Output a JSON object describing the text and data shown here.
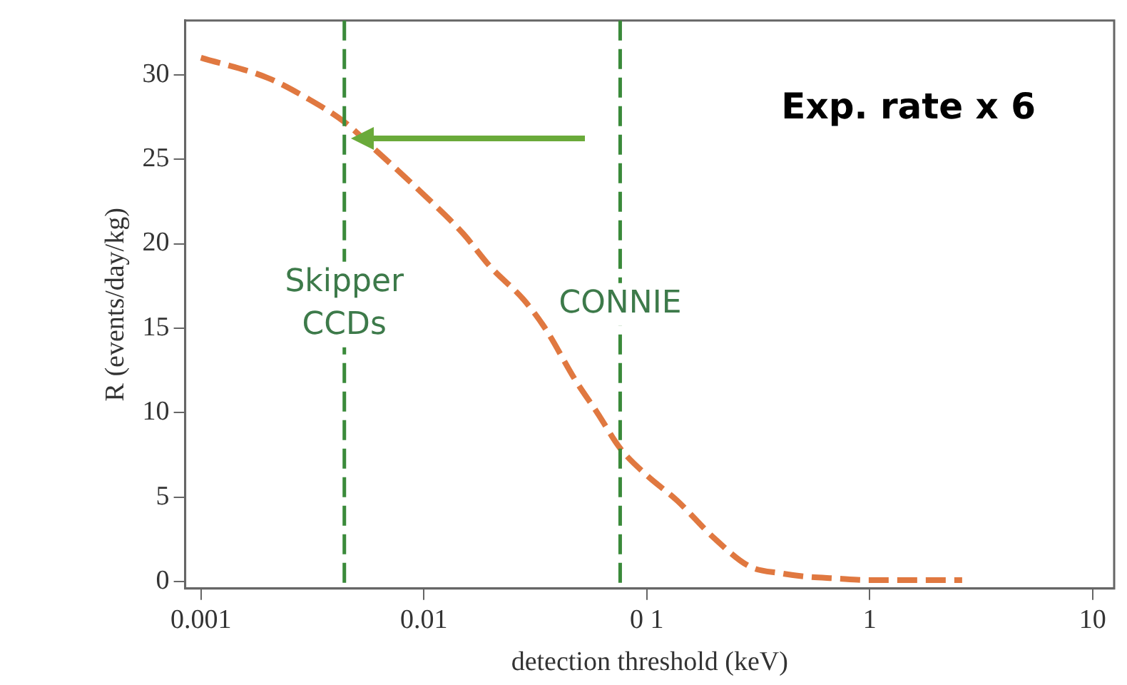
{
  "chart_data": {
    "type": "line",
    "xlabel": "detection threshold (keV)",
    "ylabel": "R (events/day/kg)",
    "log": "x",
    "xlim": [
      0.00085,
      12.5
    ],
    "ylim": [
      -0.4,
      33.2
    ],
    "xticks": [
      0.001,
      0.01,
      {
        "value": 0.1,
        "label": "0 1"
      },
      1,
      10
    ],
    "yticks": [
      0,
      5,
      10,
      15,
      20,
      25,
      30
    ],
    "grid": false,
    "legend": false,
    "marker": "none",
    "line_style": "dashed",
    "series": [
      {
        "color": "#e07840",
        "x": [
          0.001,
          0.002,
          0.003,
          0.0044,
          0.006,
          0.01,
          0.015,
          0.02,
          0.028,
          0.035,
          0.048,
          0.06,
          0.076,
          0.1,
          0.137,
          0.2,
          0.29,
          0.4,
          0.52,
          0.7,
          1,
          1.5,
          2.6
        ],
        "values": [
          31,
          29.8,
          28.6,
          27.2,
          25.6,
          22.9,
          20.6,
          18.6,
          16.7,
          15,
          11.9,
          10,
          7.9,
          6.3,
          4.8,
          2.6,
          0.9,
          0.5,
          0.3,
          0.2,
          0.1,
          0.1,
          0.1
        ]
      }
    ],
    "ref_lines": [
      {
        "axis": "x",
        "value": 0.0044,
        "label": "Skipper CCDs",
        "color": "#3a8a3a",
        "line_style": "dashed"
      },
      {
        "axis": "x",
        "value": 0.076,
        "label": "CONNIE",
        "color": "#3a8a3a",
        "line_style": "dashed"
      }
    ],
    "annotations": [
      "Exp. rate x 6"
    ]
  }
}
